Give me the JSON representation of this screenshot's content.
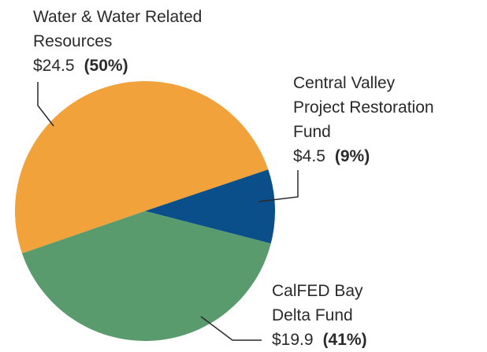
{
  "chart_data": {
    "type": "pie",
    "categories": [
      [
        "Water & Water Related",
        "Resources"
      ],
      [
        "Central Valley",
        "Project Restoration",
        "Fund"
      ],
      [
        "CalFED Bay",
        "Delta Fund"
      ]
    ],
    "values": [
      24.5,
      4.5,
      19.9
    ],
    "value_labels": [
      "$24.5",
      "$4.5",
      "$19.9"
    ],
    "percentages": [
      50,
      9,
      41
    ],
    "percentage_labels": [
      "(50%)",
      "(9%)",
      "(41%)"
    ],
    "colors": [
      "#f1a23b",
      "#0b4f8a",
      "#5a9b6e"
    ]
  }
}
